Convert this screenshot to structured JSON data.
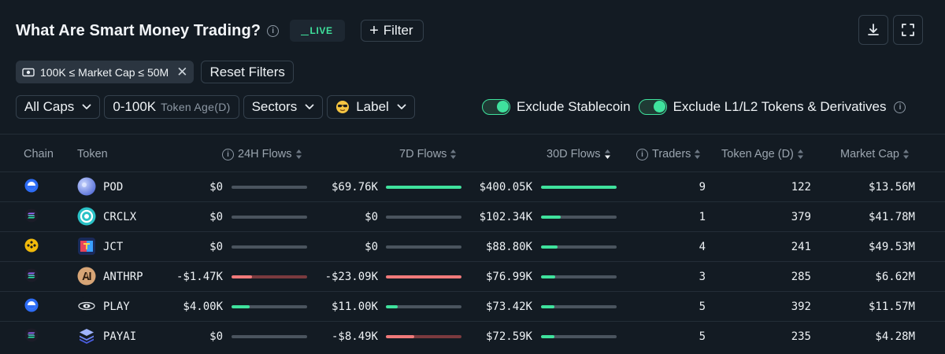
{
  "header": {
    "title": "What Are Smart Money Trading?",
    "live_label": "LIVE",
    "filter_label": "Filter"
  },
  "chips": {
    "active_filter": "100K ≤ Market Cap ≤ 50M",
    "reset_label": "Reset Filters"
  },
  "filters": {
    "caps": "All Caps",
    "age_range": "0-100K",
    "age_label": "Token Age(D)",
    "sectors": "Sectors",
    "label": "Label"
  },
  "toggles": {
    "stablecoin": "Exclude Stablecoin",
    "l1l2": "Exclude L1/L2 Tokens & Derivatives"
  },
  "columns": {
    "chain": "Chain",
    "token": "Token",
    "flows_24h": "24H Flows",
    "flows_7d": "7D Flows",
    "flows_30d": "30D Flows",
    "traders": "Traders",
    "token_age": "Token Age (D)",
    "market_cap": "Market Cap"
  },
  "colors": {
    "positive": "#3fe29d",
    "negative": "#f07a7a",
    "neutral_track": "#4a545e",
    "background": "#131b23"
  },
  "rows": [
    {
      "chain": "base",
      "token": "POD",
      "token_icon": "pod-icon",
      "flow24": "$0",
      "flow24_frac": 0,
      "flow7": "$69.76K",
      "flow7_frac": 1.0,
      "flow30": "$400.05K",
      "flow30_frac": 1.0,
      "traders": "9",
      "age": "122",
      "mcap": "$13.56M"
    },
    {
      "chain": "solana",
      "token": "CRCLX",
      "token_icon": "crclx-icon",
      "flow24": "$0",
      "flow24_frac": 0,
      "flow7": "$0",
      "flow7_frac": 0,
      "flow30": "$102.34K",
      "flow30_frac": 0.26,
      "traders": "1",
      "age": "379",
      "mcap": "$41.78M"
    },
    {
      "chain": "bnb",
      "token": "JCT",
      "token_icon": "jct-icon",
      "flow24": "$0",
      "flow24_frac": 0,
      "flow7": "$0",
      "flow7_frac": 0,
      "flow30": "$88.80K",
      "flow30_frac": 0.22,
      "traders": "4",
      "age": "241",
      "mcap": "$49.53M"
    },
    {
      "chain": "solana",
      "token": "ANTHRP",
      "token_icon": "anthrp-icon",
      "flow24": "-$1.47K",
      "flow24_frac": -0.27,
      "flow7": "-$23.09K",
      "flow7_frac": -1.0,
      "flow30": "$76.99K",
      "flow30_frac": 0.19,
      "traders": "3",
      "age": "285",
      "mcap": "$6.62M"
    },
    {
      "chain": "base",
      "token": "PLAY",
      "token_icon": "play-icon",
      "flow24": "$4.00K",
      "flow24_frac": 0.24,
      "flow7": "$11.00K",
      "flow7_frac": 0.16,
      "flow30": "$73.42K",
      "flow30_frac": 0.18,
      "traders": "5",
      "age": "392",
      "mcap": "$11.57M"
    },
    {
      "chain": "solana",
      "token": "PAYAI",
      "token_icon": "payai-icon",
      "flow24": "$0",
      "flow24_frac": 0,
      "flow7": "-$8.49K",
      "flow7_frac": -0.37,
      "flow30": "$72.59K",
      "flow30_frac": 0.18,
      "traders": "5",
      "age": "235",
      "mcap": "$4.28M"
    }
  ]
}
